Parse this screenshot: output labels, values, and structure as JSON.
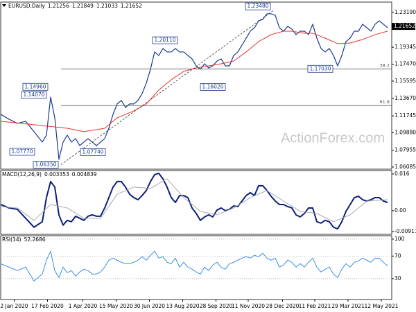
{
  "chart_data": [
    {
      "type": "line",
      "title": "EURUSD,Daily",
      "ohlc": [
        1.21256,
        1.21849,
        1.21033,
        1.21652
      ],
      "watermark": "ActionForex.com",
      "xlim": [
        0,
        376
      ],
      "xticks": [
        {
          "value": 13,
          "label": "2 Jan 2020"
        },
        {
          "value": 45,
          "label": "17 Feb 2020"
        },
        {
          "value": 79,
          "label": "1 Apr 2020"
        },
        {
          "value": 111,
          "label": "15 May 2020"
        },
        {
          "value": 143,
          "label": "30 Jun 2020"
        },
        {
          "value": 175,
          "label": "13 Aug 2020"
        },
        {
          "value": 207,
          "label": "28 Sep 2020"
        },
        {
          "value": 238,
          "label": "11 Nov 2020"
        },
        {
          "value": 271,
          "label": "28 Dec 2020"
        },
        {
          "value": 302,
          "label": "11 Feb 2021"
        },
        {
          "value": 334,
          "label": "29 Mar 2021"
        },
        {
          "value": 366,
          "label": "12 May 2021"
        }
      ],
      "ylim": [
        1.0585,
        1.2434
      ],
      "yticks": [
        {
          "value": 1.2319,
          "label": "1.23190"
        },
        1.19345,
        {
          "value": 1.1747,
          "label": "1.17470"
        },
        1.15595,
        {
          "value": 1.1367,
          "label": "1.13670"
        },
        1.11745,
        {
          "value": 1.0988,
          "label": "1.09880"
        },
        1.07955,
        1.06085
      ],
      "grid": false,
      "series": [
        {
          "color": "#1a3a8f",
          "width": 1.2,
          "x": [
            0,
            8,
            16,
            24,
            32,
            40,
            44,
            48,
            52,
            56,
            60,
            64,
            68,
            72,
            76,
            80,
            84,
            88,
            92,
            96,
            100,
            104,
            108,
            112,
            116,
            120,
            124,
            128,
            132,
            136,
            140,
            144,
            148,
            152,
            156,
            160,
            164,
            168,
            172,
            176,
            180,
            184,
            188,
            192,
            196,
            200,
            204,
            208,
            212,
            216,
            220,
            224,
            228,
            232,
            236,
            240,
            244,
            248,
            252,
            256,
            260,
            264,
            268,
            272,
            276,
            280,
            284,
            288,
            292,
            296,
            300,
            304,
            308,
            312,
            316,
            320,
            324,
            328,
            332,
            336,
            340,
            344,
            348,
            352,
            356,
            360,
            364,
            368,
            372
          ],
          "values": [
            1.1192,
            1.1138,
            1.1092,
            1.1115,
            1.1,
            1.0885,
            1.0961,
            1.1383,
            1.1153,
            1.0693,
            1.0885,
            1.0961,
            1.0885,
            1.0923,
            1.0846,
            1.0885,
            1.0923,
            1.0885,
            1.0846,
            1.0885,
            1.0923,
            1.1038,
            1.1192,
            1.1307,
            1.1345,
            1.1268,
            1.1307,
            1.1307,
            1.1345,
            1.1422,
            1.1537,
            1.169,
            1.1882,
            1.1843,
            1.192,
            1.1882,
            1.1882,
            1.192,
            1.1882,
            1.1882,
            1.1843,
            1.1805,
            1.1728,
            1.169,
            1.1751,
            1.1705,
            1.1728,
            1.1782,
            1.1805,
            1.1728,
            1.1728,
            1.1843,
            1.1882,
            1.1958,
            1.2035,
            1.2112,
            1.215,
            1.2227,
            1.2242,
            1.2304,
            1.2304,
            1.2288,
            1.215,
            1.2112,
            1.2166,
            1.2135,
            1.2074,
            1.2112,
            1.2112,
            1.2074,
            1.2189,
            1.2035,
            1.192,
            1.1882,
            1.192,
            1.1843,
            1.1728,
            1.1843,
            1.1997,
            1.2035,
            1.2112,
            1.2112,
            1.2189,
            1.215,
            1.2112,
            1.2189,
            1.2227,
            1.2189,
            1.215
          ]
        },
        {
          "color": "#e8322b",
          "width": 1,
          "x": [
            0,
            32,
            64,
            80,
            100,
            112,
            128,
            140,
            152,
            164,
            176,
            188,
            200,
            212,
            224,
            236,
            248,
            260,
            272,
            280,
            292,
            300,
            312,
            324,
            336,
            348,
            360,
            372
          ],
          "values": [
            1.1115,
            1.1077,
            1.1038,
            1.1,
            1.1038,
            1.1153,
            1.123,
            1.1307,
            1.146,
            1.1575,
            1.1667,
            1.1705,
            1.1728,
            1.1751,
            1.1782,
            1.1882,
            1.1997,
            1.2074,
            1.2112,
            1.2112,
            1.2089,
            1.2089,
            1.2035,
            1.1974,
            1.1981,
            1.202,
            1.2074,
            1.2112
          ]
        },
        {
          "color": "#333333",
          "width": 0.8,
          "dashed": true,
          "x": [
            58,
            263
          ],
          "values": [
            1.0635,
            1.2348
          ]
        }
      ],
      "levels": [
        {
          "ratio": 38.2,
          "value": 1.1694,
          "x": 58
        },
        {
          "ratio": 61.8,
          "value": 1.1289,
          "x": 58
        }
      ],
      "annotations": [
        {
          "value": 1.2348,
          "label": "1.23480"
        },
        {
          "value": 1.2011,
          "label": "1.20110"
        },
        {
          "value": 1.1602,
          "label": "1.16020"
        },
        {
          "value": 1.1703,
          "label": "1.17030"
        },
        {
          "value": 1.1496,
          "label": "1.14960"
        },
        {
          "value": 1.1407,
          "label": "1.14070"
        },
        {
          "value": 1.0777,
          "label": "1.07770"
        },
        {
          "value": 1.0774,
          "label": "1.07740"
        },
        {
          "value": 1.0635,
          "label": "1.06350"
        }
      ]
    },
    {
      "type": "line",
      "title": "MACD(12,26,9)",
      "readings": [
        0.003353,
        0.004839
      ],
      "ylim": [
        -0.0103,
        0.0175
      ],
      "yticks": [
        0.016,
        {
          "value": 0,
          "label": "0.00"
        },
        -0.009116
      ],
      "grid": false,
      "series": [
        {
          "color": "#0b1f7a",
          "width": 2,
          "x": [
            0,
            8,
            16,
            24,
            32,
            40,
            44,
            48,
            52,
            56,
            60,
            64,
            68,
            72,
            76,
            80,
            84,
            88,
            92,
            96,
            100,
            104,
            108,
            112,
            116,
            120,
            124,
            128,
            132,
            136,
            140,
            144,
            148,
            152,
            156,
            160,
            164,
            168,
            172,
            176,
            180,
            184,
            188,
            192,
            196,
            200,
            204,
            208,
            212,
            216,
            220,
            224,
            228,
            232,
            236,
            240,
            244,
            248,
            252,
            256,
            260,
            264,
            268,
            272,
            276,
            280,
            284,
            288,
            292,
            296,
            300,
            304,
            308,
            312,
            316,
            320,
            324,
            328,
            332,
            336,
            340,
            344,
            348,
            352,
            356,
            360,
            364,
            368,
            372
          ],
          "values": [
            0.0027,
            0.0012,
            0.0006,
            -0.0033,
            -0.0072,
            -0.0048,
            0.0057,
            0.0127,
            0.0103,
            -0.0018,
            -0.0063,
            -0.0042,
            -0.0048,
            -0.0024,
            -0.0033,
            -0.0042,
            -0.0024,
            -0.0018,
            -0.0024,
            -0.0024,
            0.0012,
            0.0057,
            0.0103,
            0.0127,
            0.0127,
            0.0103,
            0.0072,
            0.0057,
            0.0048,
            0.0066,
            0.0088,
            0.0127,
            0.0157,
            0.0163,
            0.0139,
            0.0103,
            0.0057,
            0.0036,
            0.0066,
            0.0066,
            0.0057,
            0.0012,
            -0.0012,
            -0.0042,
            -0.0027,
            -0.0018,
            -0.0027,
            0.0003,
            0.0012,
            0,
            0.0006,
            0.0021,
            0.0018,
            0.0042,
            0.0066,
            0.0079,
            0.0066,
            0.0109,
            0.0109,
            0.0088,
            0.0063,
            0.0042,
            0.0027,
            0.0027,
            0.0018,
            0.0012,
            -0.0018,
            -0.0027,
            -0.0012,
            0.0012,
            0.0012,
            -0.0048,
            -0.0054,
            -0.0042,
            -0.0048,
            -0.0072,
            -0.0079,
            -0.0048,
            -0.0003,
            0.0027,
            0.0057,
            0.0063,
            0.0048,
            0.0042,
            0.0048,
            0.0057,
            0.0057,
            0.0042,
            0.0036
          ]
        },
        {
          "color": "#aaaaaa",
          "width": 1,
          "x": [
            0,
            16,
            32,
            48,
            64,
            80,
            96,
            112,
            128,
            144,
            160,
            176,
            192,
            208,
            224,
            240,
            256,
            272,
            288,
            304,
            320,
            336,
            352,
            372
          ],
          "values": [
            0.0018,
            0.0012,
            -0.0042,
            0.0027,
            0.0012,
            -0.0033,
            -0.0033,
            0.0072,
            0.0103,
            0.0097,
            0.0139,
            0.0057,
            -0.0003,
            -0.0018,
            0.0012,
            0.0057,
            0.0088,
            0.0042,
            -0.0003,
            -0.0012,
            -0.0048,
            -0.0018,
            0.0042,
            0.0048
          ]
        }
      ]
    },
    {
      "type": "line",
      "title": "RSI(14)",
      "readings": [
        52.2686
      ],
      "ylim": [
        -7,
        106
      ],
      "yticks": [
        100,
        70,
        30
      ],
      "grid": true,
      "series": [
        {
          "color": "#3a8fe0",
          "width": 1,
          "x": [
            0,
            8,
            16,
            24,
            32,
            40,
            44,
            48,
            52,
            56,
            60,
            64,
            68,
            72,
            76,
            80,
            84,
            88,
            92,
            96,
            100,
            104,
            108,
            112,
            116,
            120,
            124,
            128,
            132,
            136,
            140,
            144,
            148,
            152,
            156,
            160,
            164,
            168,
            172,
            176,
            180,
            184,
            188,
            192,
            196,
            200,
            204,
            208,
            212,
            216,
            220,
            224,
            228,
            232,
            236,
            240,
            244,
            248,
            252,
            256,
            260,
            264,
            268,
            272,
            276,
            280,
            284,
            288,
            292,
            296,
            300,
            304,
            308,
            312,
            316,
            320,
            324,
            328,
            332,
            336,
            340,
            344,
            348,
            352,
            356,
            360,
            364,
            368,
            372
          ],
          "values": [
            56.5,
            50.4,
            44.2,
            50.4,
            25.8,
            38.1,
            62.7,
            78.6,
            44.2,
            31.9,
            50.4,
            40.5,
            44.2,
            34.4,
            41.8,
            46.7,
            44.2,
            38.1,
            38.1,
            41.8,
            50.4,
            62.7,
            66.3,
            62.7,
            59.0,
            56.5,
            56.5,
            59.0,
            62.7,
            68.8,
            62.7,
            71.3,
            78.6,
            66.3,
            68.8,
            59.0,
            56.5,
            66.3,
            50.4,
            59.0,
            50.4,
            46.7,
            41.8,
            38.1,
            50.4,
            44.2,
            54.1,
            59.0,
            50.4,
            46.7,
            56.5,
            59.0,
            62.7,
            66.3,
            68.8,
            66.3,
            71.3,
            68.8,
            74.9,
            66.3,
            62.7,
            66.3,
            50.4,
            54.1,
            62.7,
            59.0,
            50.4,
            56.5,
            50.4,
            59.0,
            66.3,
            50.4,
            41.8,
            46.7,
            50.4,
            38.1,
            31.9,
            46.7,
            56.5,
            50.4,
            59.0,
            61.4,
            66.3,
            62.7,
            59.0,
            66.3,
            66.3,
            59.0,
            52.8
          ]
        }
      ]
    }
  ]
}
